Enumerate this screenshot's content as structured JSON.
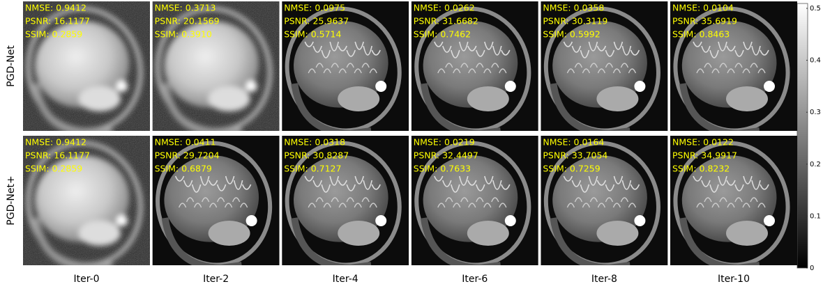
{
  "columns": [
    "Iter-0",
    "Iter-2",
    "Iter-4",
    "Iter-6",
    "Iter-8",
    "Iter-10"
  ],
  "rows": [
    {
      "label": "PGD-Net",
      "cells": [
        {
          "nmse": "NMSE: 0.9412",
          "psnr": "PSNR: 16.1177",
          "ssim": "SSIM: 0.2859"
        },
        {
          "nmse": "NMSE: 0.3713",
          "psnr": "PSNR: 20.1569",
          "ssim": "SSIM: 0.3910"
        },
        {
          "nmse": "NMSE: 0.0975",
          "psnr": "PSNR: 25.9637",
          "ssim": "SSIM: 0.5714"
        },
        {
          "nmse": "NMSE: 0.0262",
          "psnr": "PSNR: 31.6682",
          "ssim": "SSIM: 0.7462"
        },
        {
          "nmse": "NMSE: 0.0358",
          "psnr": "PSNR: 30.3119",
          "ssim": "SSIM: 0.5992"
        },
        {
          "nmse": "NMSE: 0.0104",
          "psnr": "PSNR: 35.6919",
          "ssim": "SSIM: 0.8463"
        }
      ]
    },
    {
      "label": "PGD-Net+",
      "cells": [
        {
          "nmse": "NMSE: 0.9412",
          "psnr": "PSNR: 16.1177",
          "ssim": "SSIM: 0.2859"
        },
        {
          "nmse": "NMSE: 0.0411",
          "psnr": "PSNR: 29.7204",
          "ssim": "SSIM: 0.6879"
        },
        {
          "nmse": "NMSE: 0.0318",
          "psnr": "PSNR: 30.8287",
          "ssim": "SSIM: 0.7127"
        },
        {
          "nmse": "NMSE: 0.0219",
          "psnr": "PSNR: 32.4497",
          "ssim": "SSIM: 0.7633"
        },
        {
          "nmse": "NMSE: 0.0164",
          "psnr": "PSNR: 33.7054",
          "ssim": "SSIM: 0.7259"
        },
        {
          "nmse": "NMSE: 0.0122",
          "psnr": "PSNR: 34.9917",
          "ssim": "SSIM: 0.8232"
        }
      ]
    }
  ],
  "colorbar": {
    "ticks": [
      0,
      0.1,
      0.2,
      0.3,
      0.4,
      0.5
    ]
  }
}
